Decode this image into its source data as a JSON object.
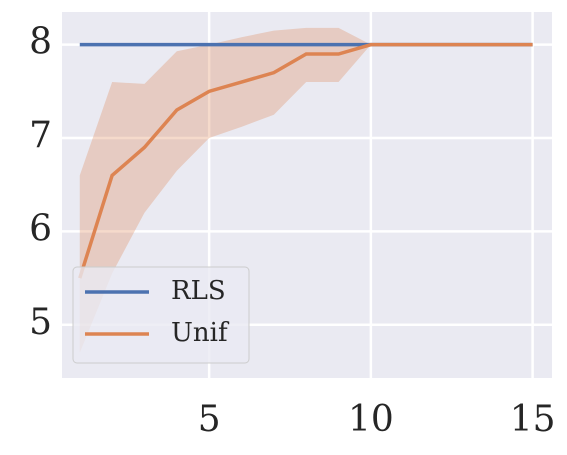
{
  "chart_data": {
    "type": "line",
    "x": [
      1,
      2,
      3,
      4,
      5,
      6,
      7,
      8,
      9,
      10,
      11,
      12,
      13,
      14,
      15
    ],
    "series": [
      {
        "name": "RLS",
        "color": "#4c72b0",
        "values": [
          8,
          8,
          8,
          8,
          8,
          8,
          8,
          8,
          8,
          8,
          8,
          8,
          8,
          8,
          8
        ]
      },
      {
        "name": "Unif",
        "color": "#dd8452",
        "values": [
          5.5,
          6.6,
          6.9,
          7.3,
          7.5,
          7.6,
          7.7,
          7.9,
          7.9,
          8,
          8,
          8,
          8,
          8,
          8
        ],
        "band": {
          "lower": [
            4.7,
            5.55,
            6.2,
            6.65,
            7.0,
            7.12,
            7.25,
            7.6,
            7.6,
            8,
            8,
            8,
            8,
            8,
            8
          ],
          "upper": [
            6.6,
            7.6,
            7.58,
            7.93,
            8.0,
            8.08,
            8.15,
            8.18,
            8.18,
            8,
            8,
            8,
            8,
            8,
            8
          ]
        }
      }
    ],
    "xlim": [
      0.45,
      15.6
    ],
    "ylim": [
      4.43,
      8.35
    ],
    "xticks": [
      5,
      10,
      15
    ],
    "yticks": [
      5,
      6,
      7,
      8
    ],
    "grid": true,
    "legend": "lower left",
    "background": "#eaeaf2"
  }
}
